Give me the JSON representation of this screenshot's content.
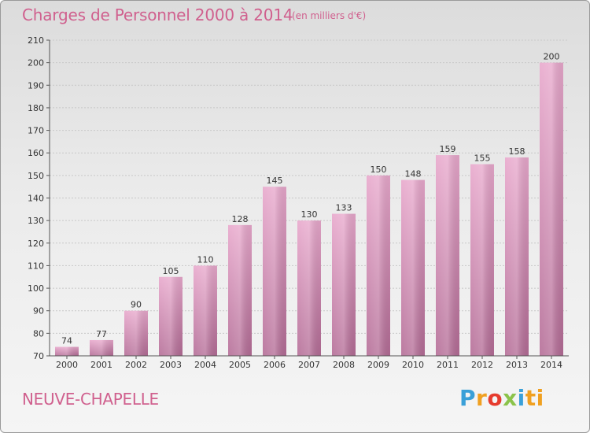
{
  "title": "Charges de Personnel 2000 à 2014",
  "subtitle": "(en milliers d'€)",
  "commune": "NEUVE-CHAPELLE",
  "logo": {
    "text": "Proxiti",
    "letters": [
      "P",
      "r",
      "o",
      "x",
      "i",
      "ti"
    ]
  },
  "colors": {
    "bar_top": "#e8a8cc",
    "bar_bottom": "#b46c96",
    "text_accent": "#d0608e"
  },
  "chart_data": {
    "type": "bar",
    "title": "Charges de Personnel 2000 à 2014",
    "subtitle": "(en milliers d'€)",
    "categories": [
      "2000",
      "2001",
      "2002",
      "2003",
      "2004",
      "2005",
      "2006",
      "2007",
      "2008",
      "2009",
      "2010",
      "2011",
      "2012",
      "2013",
      "2014"
    ],
    "values": [
      74,
      77,
      90,
      105,
      110,
      128,
      145,
      130,
      133,
      150,
      148,
      159,
      155,
      158,
      200
    ],
    "ylim": [
      70,
      210
    ],
    "yticks": [
      70,
      80,
      90,
      100,
      110,
      120,
      130,
      140,
      150,
      160,
      170,
      180,
      190,
      200,
      210
    ],
    "grid": true,
    "legend": "none"
  }
}
